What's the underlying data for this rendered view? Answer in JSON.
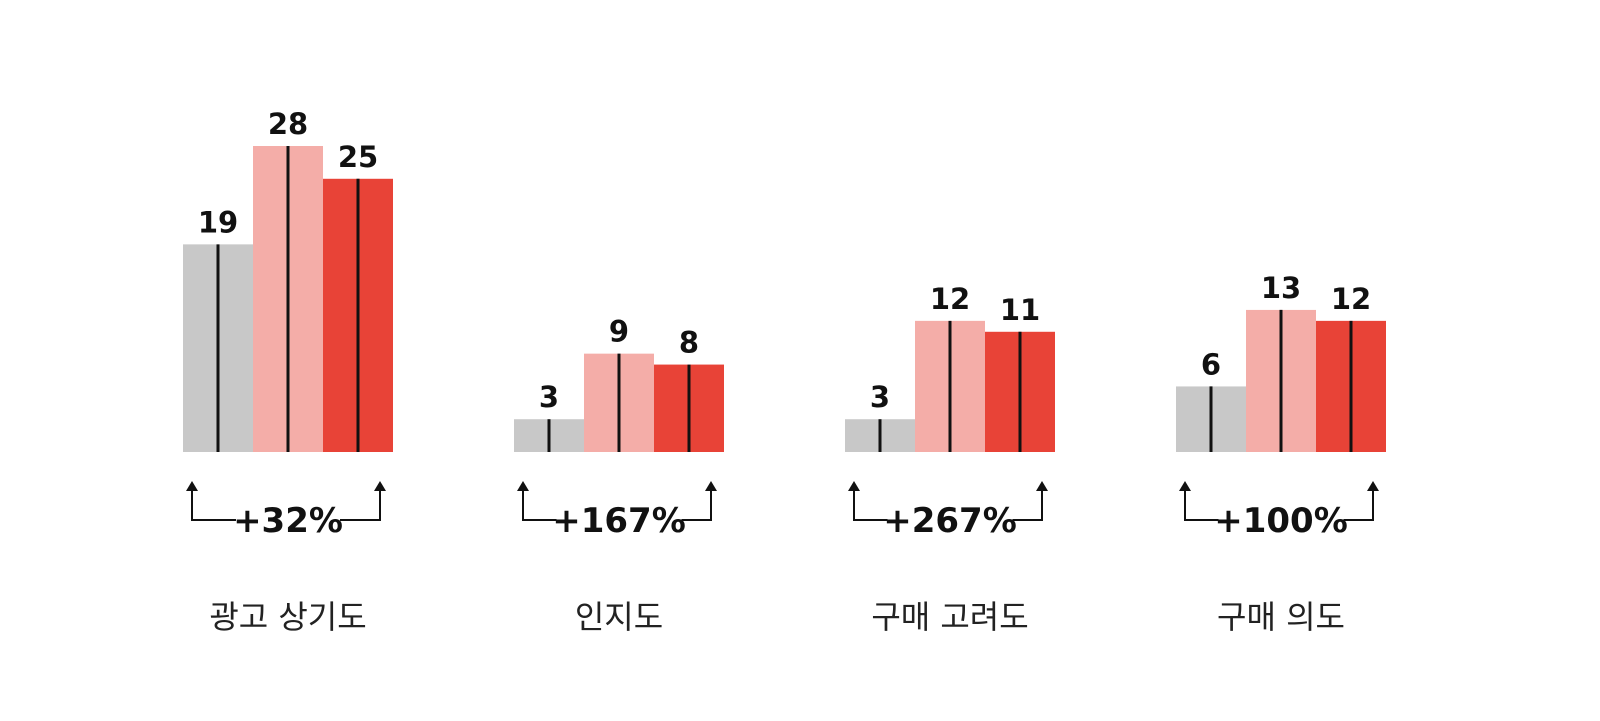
{
  "chart_data": {
    "type": "bar",
    "categories": [
      "광고 상기도",
      "인지도",
      "구매 고려도",
      "구매 의도"
    ],
    "series": [
      {
        "values": [
          19,
          3,
          3,
          6
        ],
        "color": "#c8c8c8"
      },
      {
        "values": [
          28,
          9,
          12,
          13
        ],
        "color": "#f4ada8"
      },
      {
        "values": [
          25,
          8,
          11,
          12
        ],
        "color": "#e84337"
      }
    ],
    "changes": [
      "+32%",
      "+167%",
      "+267%",
      "+100%"
    ],
    "ylim": [
      0,
      28
    ],
    "grid": false,
    "legend": "none"
  }
}
